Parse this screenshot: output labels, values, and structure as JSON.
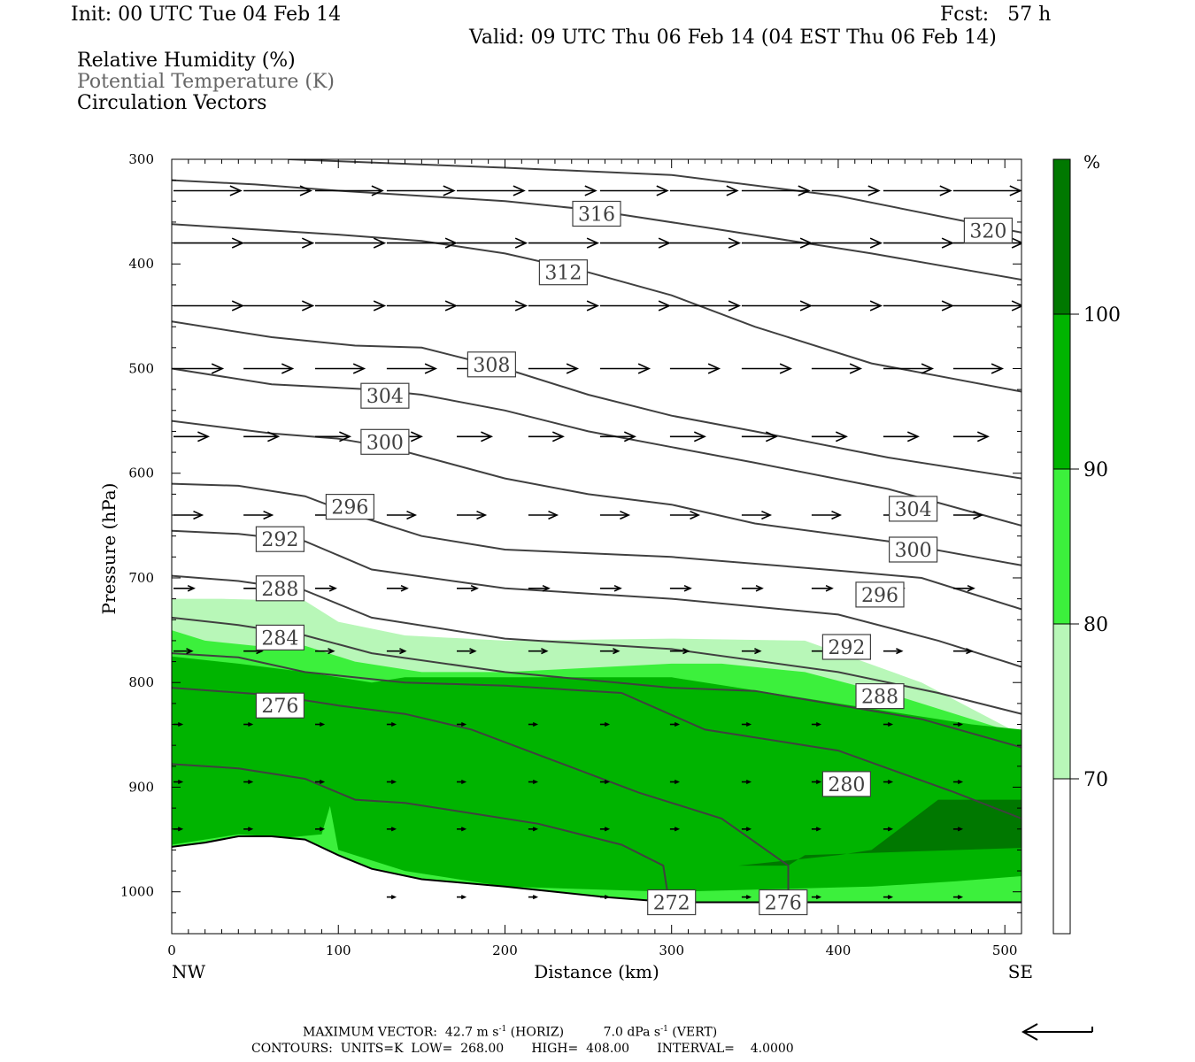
{
  "header": {
    "init": "Init: 00 UTC Tue 04 Feb 14",
    "fcst": "Fcst:   57 h",
    "valid": "Valid: 09 UTC Thu 06 Feb 14 (04 EST Thu 06 Feb 14)"
  },
  "legend_lines": {
    "rh": "Relative Humidity (%)",
    "theta": "Potential Temperature (K)",
    "vectors": "Circulation Vectors"
  },
  "footer": {
    "max_vector_label": "MAXIMUM VECTOR:",
    "horiz_value": "42.7 m s",
    "horiz_unit_tail": "(HORIZ)",
    "vert_value": "7.0 dPa s",
    "vert_unit_tail": "(VERT)",
    "exponent": "-1",
    "contours_line": "CONTOURS:  UNITS=K  LOW=  268.00       HIGH=  408.00       INTERVAL=    4.0000"
  },
  "colors": {
    "rh_70_80": "#b8f7b8",
    "rh_80_90": "#3cf03c",
    "rh_90_100": "#00b400",
    "rh_100": "#007800",
    "contour": "#404040",
    "label_box": "#404040"
  },
  "chart_data": {
    "type": "cross-section",
    "xlabel": "Distance (km)",
    "ylabel": "Pressure (hPa)",
    "xlim": [
      0,
      510
    ],
    "ylim": [
      1040,
      300
    ],
    "x_ticks": [
      0,
      100,
      200,
      300,
      400,
      500
    ],
    "y_ticks": [
      300,
      400,
      500,
      600,
      700,
      800,
      900,
      1000
    ],
    "x_end_labels": {
      "left": "NW",
      "right": "SE"
    },
    "colorbar": {
      "unit": "%",
      "levels": [
        70,
        80,
        90,
        100
      ],
      "level_labels": [
        "70",
        "80",
        "90",
        "100"
      ]
    },
    "rh_fills": [
      {
        "range": "70-80",
        "color_key": "rh_70_80",
        "points": [
          [
            0,
            720
          ],
          [
            30,
            720
          ],
          [
            80,
            722
          ],
          [
            100,
            742
          ],
          [
            140,
            755
          ],
          [
            200,
            760
          ],
          [
            300,
            758
          ],
          [
            380,
            760
          ],
          [
            450,
            800
          ],
          [
            510,
            850
          ],
          [
            510,
            1010
          ],
          [
            0,
            1010
          ]
        ]
      },
      {
        "range": "80-90",
        "color_key": "rh_80_90",
        "points": [
          [
            0,
            750
          ],
          [
            20,
            760
          ],
          [
            50,
            765
          ],
          [
            80,
            765
          ],
          [
            110,
            780
          ],
          [
            150,
            790
          ],
          [
            200,
            790
          ],
          [
            300,
            782
          ],
          [
            330,
            782
          ],
          [
            380,
            790
          ],
          [
            440,
            815
          ],
          [
            510,
            850
          ],
          [
            510,
            1010
          ],
          [
            0,
            1010
          ]
        ]
      },
      {
        "range": "90-100",
        "color_key": "rh_90_100",
        "points": [
          [
            0,
            775
          ],
          [
            40,
            782
          ],
          [
            80,
            790
          ],
          [
            120,
            800
          ],
          [
            140,
            795
          ],
          [
            200,
            795
          ],
          [
            300,
            795
          ],
          [
            340,
            805
          ],
          [
            420,
            825
          ],
          [
            480,
            840
          ],
          [
            510,
            845
          ],
          [
            510,
            985
          ],
          [
            470,
            990
          ],
          [
            420,
            995
          ],
          [
            300,
            1000
          ],
          [
            200,
            995
          ],
          [
            140,
            980
          ],
          [
            100,
            960
          ],
          [
            95,
            918
          ],
          [
            90,
            945
          ],
          [
            70,
            948
          ],
          [
            40,
            945
          ],
          [
            0,
            955
          ]
        ]
      },
      {
        "range": "100+",
        "color_key": "rh_100",
        "points": [
          [
            340,
            975
          ],
          [
            400,
            965
          ],
          [
            420,
            960
          ],
          [
            460,
            912
          ],
          [
            510,
            912
          ],
          [
            510,
            958
          ],
          [
            380,
            965
          ],
          [
            370,
            975
          ]
        ]
      }
    ],
    "terrain": [
      [
        0,
        957
      ],
      [
        20,
        953
      ],
      [
        40,
        947
      ],
      [
        60,
        947
      ],
      [
        80,
        950
      ],
      [
        100,
        965
      ],
      [
        120,
        978
      ],
      [
        150,
        988
      ],
      [
        200,
        995
      ],
      [
        260,
        1005
      ],
      [
        300,
        1010
      ],
      [
        510,
        1010
      ]
    ],
    "theta_contours": [
      {
        "value": 320,
        "points": [
          [
            70,
            300
          ],
          [
            200,
            308
          ],
          [
            300,
            315
          ],
          [
            400,
            335
          ],
          [
            510,
            370
          ]
        ]
      },
      {
        "value": 316,
        "points": [
          [
            0,
            320
          ],
          [
            50,
            324
          ],
          [
            100,
            330
          ],
          [
            150,
            335
          ],
          [
            200,
            340
          ],
          [
            250,
            348
          ],
          [
            320,
            365
          ],
          [
            420,
            390
          ],
          [
            510,
            415
          ]
        ]
      },
      {
        "value": 312,
        "points": [
          [
            0,
            362
          ],
          [
            100,
            372
          ],
          [
            150,
            378
          ],
          [
            200,
            390
          ],
          [
            250,
            408
          ],
          [
            300,
            430
          ],
          [
            350,
            460
          ],
          [
            420,
            495
          ],
          [
            510,
            522
          ]
        ]
      },
      {
        "value": 308,
        "points": [
          [
            0,
            455
          ],
          [
            60,
            470
          ],
          [
            110,
            478
          ],
          [
            150,
            480
          ],
          [
            200,
            500
          ],
          [
            250,
            525
          ],
          [
            300,
            545
          ],
          [
            350,
            560
          ],
          [
            430,
            585
          ],
          [
            510,
            605
          ]
        ]
      },
      {
        "value": 304,
        "points": [
          [
            0,
            500
          ],
          [
            60,
            515
          ],
          [
            120,
            520
          ],
          [
            150,
            525
          ],
          [
            200,
            540
          ],
          [
            250,
            560
          ],
          [
            300,
            575
          ],
          [
            350,
            590
          ],
          [
            430,
            615
          ],
          [
            510,
            650
          ]
        ]
      },
      {
        "value": 300,
        "points": [
          [
            0,
            550
          ],
          [
            60,
            562
          ],
          [
            100,
            567
          ],
          [
            130,
            575
          ],
          [
            200,
            605
          ],
          [
            250,
            620
          ],
          [
            300,
            630
          ],
          [
            350,
            648
          ],
          [
            430,
            665
          ],
          [
            510,
            688
          ]
        ]
      },
      {
        "value": 296,
        "points": [
          [
            0,
            610
          ],
          [
            40,
            612
          ],
          [
            80,
            622
          ],
          [
            110,
            640
          ],
          [
            150,
            660
          ],
          [
            200,
            673
          ],
          [
            300,
            680
          ],
          [
            400,
            693
          ],
          [
            450,
            700
          ],
          [
            510,
            730
          ]
        ]
      },
      {
        "value": 292,
        "points": [
          [
            0,
            655
          ],
          [
            40,
            658
          ],
          [
            80,
            665
          ],
          [
            120,
            692
          ],
          [
            200,
            710
          ],
          [
            300,
            720
          ],
          [
            400,
            735
          ],
          [
            460,
            760
          ],
          [
            510,
            785
          ]
        ]
      },
      {
        "value": 288,
        "points": [
          [
            0,
            698
          ],
          [
            40,
            703
          ],
          [
            80,
            712
          ],
          [
            120,
            738
          ],
          [
            200,
            758
          ],
          [
            300,
            768
          ],
          [
            400,
            790
          ],
          [
            460,
            810
          ],
          [
            510,
            830
          ]
        ]
      },
      {
        "value": 284,
        "points": [
          [
            0,
            738
          ],
          [
            40,
            745
          ],
          [
            80,
            755
          ],
          [
            120,
            772
          ],
          [
            200,
            790
          ],
          [
            300,
            805
          ],
          [
            350,
            808
          ],
          [
            450,
            835
          ],
          [
            510,
            862
          ]
        ]
      },
      {
        "value": 280,
        "points": [
          [
            0,
            772
          ],
          [
            40,
            776
          ],
          [
            80,
            790
          ],
          [
            140,
            800
          ],
          [
            200,
            803
          ],
          [
            270,
            810
          ],
          [
            320,
            845
          ],
          [
            400,
            865
          ],
          [
            470,
            905
          ],
          [
            510,
            930
          ]
        ]
      },
      {
        "value": 276,
        "points": [
          [
            0,
            805
          ],
          [
            60,
            812
          ],
          [
            100,
            822
          ],
          [
            140,
            830
          ],
          [
            180,
            845
          ],
          [
            230,
            875
          ],
          [
            280,
            905
          ],
          [
            330,
            930
          ],
          [
            370,
            975
          ],
          [
            370,
            1000
          ]
        ]
      },
      {
        "value": 272,
        "points": [
          [
            0,
            878
          ],
          [
            40,
            882
          ],
          [
            80,
            892
          ],
          [
            110,
            912
          ],
          [
            140,
            915
          ],
          [
            220,
            935
          ],
          [
            270,
            955
          ],
          [
            295,
            975
          ],
          [
            298,
            1005
          ]
        ]
      }
    ],
    "theta_labels": [
      {
        "text": "316",
        "x": 255,
        "p": 352
      },
      {
        "text": "320",
        "x": 490,
        "p": 368
      },
      {
        "text": "312",
        "x": 235,
        "p": 408
      },
      {
        "text": "308",
        "x": 192,
        "p": 496
      },
      {
        "text": "304",
        "x": 128,
        "p": 526
      },
      {
        "text": "300",
        "x": 128,
        "p": 570
      },
      {
        "text": "296",
        "x": 107,
        "p": 632
      },
      {
        "text": "292",
        "x": 65,
        "p": 663
      },
      {
        "text": "288",
        "x": 65,
        "p": 710
      },
      {
        "text": "284",
        "x": 65,
        "p": 757
      },
      {
        "text": "276",
        "x": 65,
        "p": 822
      },
      {
        "text": "304",
        "x": 445,
        "p": 634
      },
      {
        "text": "300",
        "x": 445,
        "p": 673
      },
      {
        "text": "296",
        "x": 425,
        "p": 716
      },
      {
        "text": "292",
        "x": 405,
        "p": 766
      },
      {
        "text": "288",
        "x": 425,
        "p": 813
      },
      {
        "text": "280",
        "x": 405,
        "p": 897
      },
      {
        "text": "272",
        "x": 300,
        "p": 1010
      },
      {
        "text": "276",
        "x": 367,
        "p": 1010
      }
    ],
    "vector_rows": [
      {
        "p": 330,
        "xs": [
          0,
          42,
          85,
          128,
          170,
          213,
          256,
          298,
          341,
          383,
          426,
          468
        ],
        "u": 33,
        "w": 0
      },
      {
        "p": 380,
        "xs": [
          0,
          42,
          85,
          128,
          170,
          213,
          256,
          298,
          341,
          383,
          426,
          468
        ],
        "u": 34,
        "w": 0
      },
      {
        "p": 440,
        "xs": [
          0,
          42,
          85,
          128,
          170,
          213,
          256,
          298,
          341,
          383,
          426,
          468
        ],
        "u": 34,
        "w": 0
      },
      {
        "p": 500,
        "xs": [
          0,
          42,
          85,
          128,
          170,
          213,
          256,
          298,
          341,
          383,
          426,
          468
        ],
        "u": 24,
        "w": 0
      },
      {
        "p": 565,
        "xs": [
          0,
          42,
          85,
          128,
          170,
          213,
          256,
          298,
          341,
          383,
          426,
          468
        ],
        "u": 17,
        "w": 0
      },
      {
        "p": 640,
        "xs": [
          0,
          42,
          85,
          128,
          170,
          213,
          256,
          298,
          341,
          383,
          426,
          468
        ],
        "u": 14,
        "w": 0
      },
      {
        "p": 710,
        "xs": [
          0,
          42,
          85,
          128,
          170,
          213,
          256,
          298,
          341,
          383,
          426,
          468
        ],
        "u": 10,
        "w": 0
      },
      {
        "p": 770,
        "xs": [
          0,
          42,
          85,
          128,
          170,
          213,
          256,
          298,
          341,
          383,
          426,
          468
        ],
        "u": 9,
        "w": 0
      },
      {
        "p": 840,
        "xs": [
          0,
          42,
          85,
          128,
          170,
          213,
          256,
          298,
          341,
          383,
          426,
          468
        ],
        "u": 4,
        "w": 0
      },
      {
        "p": 895,
        "xs": [
          0,
          42,
          85,
          128,
          170,
          213,
          256,
          298,
          341,
          383,
          426,
          468
        ],
        "u": 4,
        "w": 0
      },
      {
        "p": 940,
        "xs": [
          0,
          42,
          85,
          128,
          170,
          213,
          256,
          298,
          341,
          383,
          426,
          468
        ],
        "u": 4,
        "w": 0
      },
      {
        "p": 1005,
        "xs": [
          128,
          170,
          213,
          256,
          298,
          341,
          383,
          426,
          468
        ],
        "u": 4,
        "w": 0
      }
    ]
  }
}
